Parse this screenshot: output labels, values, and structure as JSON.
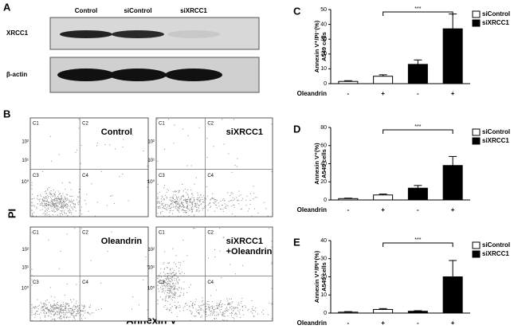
{
  "blot": {
    "panel": "A",
    "lanes": [
      "Control",
      "siControl",
      "siXRCC1"
    ],
    "rows": [
      "XRCC1",
      "β-actin"
    ]
  },
  "flow": {
    "panel": "B",
    "y_axis_label": "PI",
    "x_axis_label": "Annexin V",
    "quadrant_labels": [
      "C1",
      "C2",
      "C3",
      "C4"
    ],
    "y_tick_labels": [
      "10²",
      "10¹",
      "10⁰"
    ],
    "plots": [
      {
        "label": [
          "Control"
        ]
      },
      {
        "label": [
          "siXRCC1"
        ]
      },
      {
        "label": [
          "Oleandrin"
        ]
      },
      {
        "label": [
          "siXRCC1",
          "+Oleandrin"
        ]
      }
    ]
  },
  "chart_data": [
    {
      "type": "bar",
      "panel": "C",
      "ylabel_lines": [
        "Annexin V⁺/PI⁻(%)",
        "A549 cells"
      ],
      "xlabel": "Oleandrin",
      "categories": [
        "-",
        "+",
        "-",
        "+"
      ],
      "series": [
        {
          "name": "siControl",
          "color": "#ffffff",
          "values": [
            1.5,
            5,
            null,
            null
          ],
          "errors": [
            0.5,
            1,
            null,
            null
          ]
        },
        {
          "name": "siXRCC1",
          "color": "#000000",
          "values": [
            null,
            null,
            13,
            37
          ],
          "errors": [
            null,
            null,
            3,
            10
          ]
        }
      ],
      "ylim": [
        0,
        50
      ],
      "yticks": [
        0,
        10,
        20,
        30,
        40,
        50
      ],
      "annotation": "***",
      "legend": "upper right"
    },
    {
      "type": "bar",
      "panel": "D",
      "ylabel_lines": [
        "Annexin V⁺(%)",
        "A549 cells"
      ],
      "xlabel": "Oleandrin",
      "categories": [
        "-",
        "+",
        "-",
        "+"
      ],
      "series": [
        {
          "name": "siControl",
          "color": "#ffffff",
          "values": [
            1.5,
            5.5,
            null,
            null
          ],
          "errors": [
            0.5,
            1,
            null,
            null
          ]
        },
        {
          "name": "siXRCC1",
          "color": "#000000",
          "values": [
            null,
            null,
            13,
            38
          ],
          "errors": [
            null,
            null,
            3,
            10
          ]
        }
      ],
      "ylim": [
        0,
        80
      ],
      "yticks": [
        0,
        20,
        40,
        60,
        80
      ],
      "annotation": "***",
      "legend": "upper right"
    },
    {
      "type": "bar",
      "panel": "E",
      "ylabel_lines": [
        "Annexin V⁺/PI⁺(%)",
        "A549 cells"
      ],
      "xlabel": "Oleandrin",
      "categories": [
        "-",
        "+",
        "-",
        "+"
      ],
      "series": [
        {
          "name": "siControl",
          "color": "#ffffff",
          "values": [
            0.5,
            2,
            null,
            null
          ],
          "errors": [
            0.3,
            0.5,
            null,
            null
          ]
        },
        {
          "name": "siXRCC1",
          "color": "#000000",
          "values": [
            null,
            null,
            1,
            20
          ],
          "errors": [
            null,
            null,
            0.3,
            9
          ]
        }
      ],
      "ylim": [
        0,
        40
      ],
      "yticks": [
        0,
        10,
        20,
        30,
        40
      ],
      "annotation": "***",
      "legend": "upper right"
    }
  ]
}
